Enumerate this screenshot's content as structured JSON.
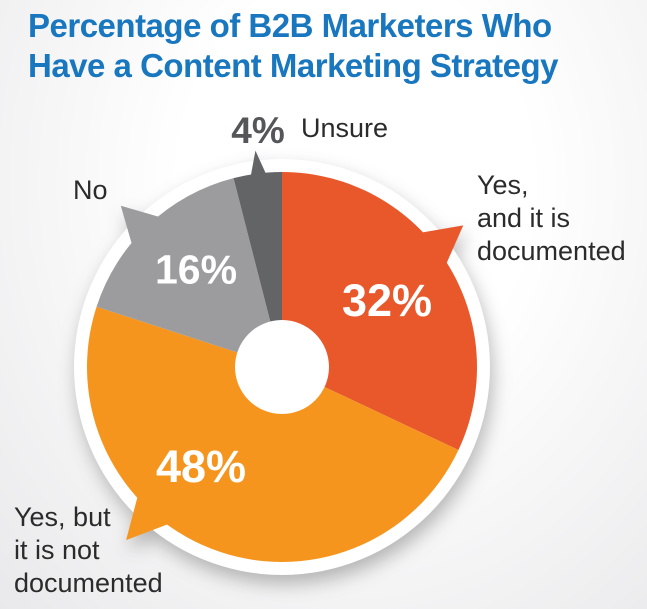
{
  "title": {
    "line1": "Percentage of B2B Marketers Who",
    "line2": "Have a Content Marketing Strategy",
    "color": "#1877be"
  },
  "chart_data": {
    "type": "pie",
    "title": "Percentage of B2B Marketers Who Have a Content Marketing Strategy",
    "direction": "clockwise",
    "start_angle_deg": 0,
    "donut_hole": true,
    "slices": [
      {
        "label": "Yes, and it is documented",
        "value": 32,
        "display": "32%",
        "color": "#e9582b"
      },
      {
        "label": "Yes, but it is not documented",
        "value": 48,
        "display": "48%",
        "color": "#f6951e"
      },
      {
        "label": "No",
        "value": 16,
        "display": "16%",
        "color": "#9c9c9e"
      },
      {
        "label": "Unsure",
        "value": 4,
        "display": "4%",
        "color": "#636466"
      }
    ]
  },
  "callouts": {
    "unsure": "Unsure",
    "no": "No",
    "yes_doc": "Yes,\nand it is\ndocumented",
    "yes_not_doc": "Yes, but\nit is not\ndocumented"
  }
}
